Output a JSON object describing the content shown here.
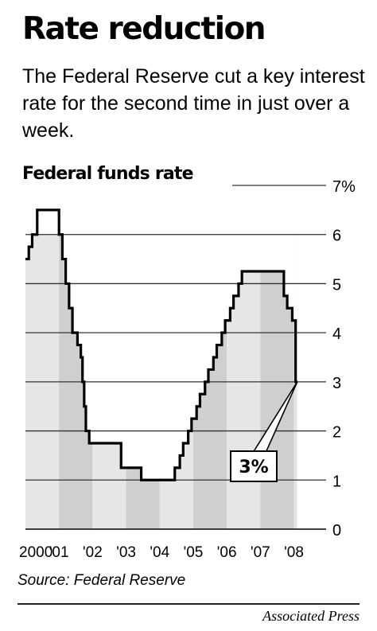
{
  "header": {
    "title": "Rate reduction",
    "subtitle": "The Federal Reserve cut a key interest rate for the second time in just over a week."
  },
  "footer": {
    "source": "Source: Federal Reserve",
    "credit": "Associated Press"
  },
  "colors": {
    "stripe_light": "#e6e6e6",
    "stripe_dark": "#cfcfcf",
    "line": "#000000",
    "grid": "#333333"
  },
  "chart_data": {
    "type": "area",
    "title": "Federal funds rate",
    "x_axis": {
      "range": [
        2000.0,
        2008.2
      ],
      "tick_labels": [
        {
          "label": "2000",
          "x": 2000.0
        },
        {
          "label": "'01",
          "x": 2001.0
        },
        {
          "label": "'02",
          "x": 2002.0
        },
        {
          "label": "'03",
          "x": 2003.0
        },
        {
          "label": "'04",
          "x": 2004.0
        },
        {
          "label": "'05",
          "x": 2005.0
        },
        {
          "label": "'06",
          "x": 2006.0
        },
        {
          "label": "'07",
          "x": 2007.0
        },
        {
          "label": "'08",
          "x": 2008.0
        }
      ]
    },
    "y_axis": {
      "range": [
        0,
        7
      ],
      "tick_labels": [
        {
          "label": "0",
          "y": 0
        },
        {
          "label": "1",
          "y": 1
        },
        {
          "label": "2",
          "y": 2
        },
        {
          "label": "3",
          "y": 3
        },
        {
          "label": "4",
          "y": 4
        },
        {
          "label": "5",
          "y": 5
        },
        {
          "label": "6",
          "y": 6
        },
        {
          "label": "7%",
          "y": 7
        }
      ]
    },
    "grid": true,
    "series": [
      {
        "points": [
          [
            2000.0,
            5.5
          ],
          [
            2000.1,
            5.75
          ],
          [
            2000.2,
            6.0
          ],
          [
            2000.35,
            6.5
          ],
          [
            2000.9,
            6.5
          ],
          [
            2001.0,
            6.0
          ],
          [
            2001.1,
            5.5
          ],
          [
            2001.2,
            5.0
          ],
          [
            2001.3,
            4.5
          ],
          [
            2001.4,
            4.0
          ],
          [
            2001.55,
            3.75
          ],
          [
            2001.65,
            3.5
          ],
          [
            2001.7,
            3.0
          ],
          [
            2001.75,
            2.5
          ],
          [
            2001.8,
            2.0
          ],
          [
            2001.9,
            1.75
          ],
          [
            2002.85,
            1.25
          ],
          [
            2003.45,
            1.0
          ],
          [
            2004.45,
            1.25
          ],
          [
            2004.6,
            1.5
          ],
          [
            2004.7,
            1.75
          ],
          [
            2004.85,
            2.0
          ],
          [
            2004.95,
            2.25
          ],
          [
            2005.1,
            2.5
          ],
          [
            2005.2,
            2.75
          ],
          [
            2005.35,
            3.0
          ],
          [
            2005.45,
            3.25
          ],
          [
            2005.6,
            3.5
          ],
          [
            2005.7,
            3.75
          ],
          [
            2005.85,
            4.0
          ],
          [
            2005.95,
            4.25
          ],
          [
            2006.1,
            4.5
          ],
          [
            2006.2,
            4.75
          ],
          [
            2006.35,
            5.0
          ],
          [
            2006.45,
            5.25
          ],
          [
            2007.7,
            4.75
          ],
          [
            2007.8,
            4.5
          ],
          [
            2007.95,
            4.25
          ],
          [
            2008.05,
            3.0
          ],
          [
            2008.1,
            3.0
          ]
        ]
      }
    ],
    "annotation": {
      "label": "3%",
      "x": 2008.1,
      "y": 3.0
    }
  }
}
